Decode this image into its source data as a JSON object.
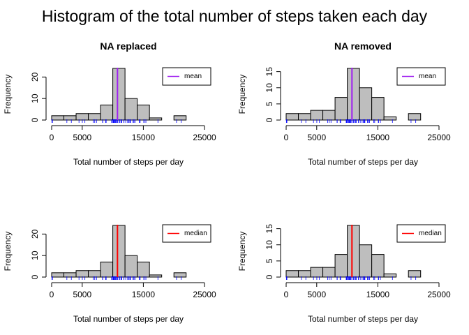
{
  "figure": {
    "title": "Histogram of the total number of steps taken each day"
  },
  "chart_data": [
    {
      "type": "bar",
      "title": "NA replaced",
      "xlabel": "Total number of steps per day",
      "ylabel": "Frequency",
      "bin_edges": [
        0,
        2000,
        4000,
        6000,
        8000,
        10000,
        12000,
        14000,
        16000,
        18000,
        20000,
        22000
      ],
      "values": [
        2,
        2,
        3,
        3,
        7,
        24,
        10,
        7,
        1,
        0,
        2
      ],
      "xlim": [
        0,
        25000
      ],
      "x_ticks": [
        0,
        5000,
        15000,
        25000
      ],
      "x_tick_labels": [
        "0",
        "5000",
        "15000",
        "25000"
      ],
      "ylim": [
        0,
        24
      ],
      "y_ticks": [
        0,
        10,
        20
      ],
      "y_tick_labels": [
        "0",
        "10",
        "20"
      ],
      "reference_line": {
        "label": "mean",
        "value": 10766,
        "color": "#a020f0"
      },
      "legend": {
        "position": "top-right",
        "label": "mean"
      },
      "bar_color": "#bebebe",
      "rug_color": "#0000ff",
      "rug": [
        41,
        126,
        2492,
        3219,
        4472,
        5018,
        5441,
        6778,
        7047,
        7336,
        8334,
        8355,
        8821,
        8918,
        9819,
        9900,
        10056,
        10139,
        10183,
        10304,
        10395,
        10439,
        10571,
        10600,
        10765,
        10766,
        11015,
        11162,
        11352,
        11458,
        11829,
        11834,
        12116,
        12426,
        12608,
        12787,
        12811,
        12883,
        13294,
        13452,
        13460,
        13646,
        14339,
        14478,
        15084,
        15098,
        15110,
        15414,
        17382,
        20427,
        21194
      ]
    },
    {
      "type": "bar",
      "title": "NA removed",
      "xlabel": "Total number of steps per day",
      "ylabel": "Frequency",
      "bin_edges": [
        0,
        2000,
        4000,
        6000,
        8000,
        10000,
        12000,
        14000,
        16000,
        18000,
        20000,
        22000
      ],
      "values": [
        2,
        2,
        3,
        3,
        7,
        16,
        10,
        7,
        1,
        0,
        2
      ],
      "xlim": [
        0,
        25000
      ],
      "x_ticks": [
        0,
        5000,
        15000,
        25000
      ],
      "x_tick_labels": [
        "0",
        "5000",
        "15000",
        "25000"
      ],
      "ylim": [
        0,
        16
      ],
      "y_ticks": [
        0,
        5,
        10,
        15
      ],
      "y_tick_labels": [
        "0",
        "5",
        "10",
        "15"
      ],
      "reference_line": {
        "label": "mean",
        "value": 10766,
        "color": "#a020f0"
      },
      "legend": {
        "position": "top-right",
        "label": "mean"
      },
      "bar_color": "#bebebe",
      "rug_color": "#0000ff",
      "rug": [
        41,
        126,
        2492,
        3219,
        4472,
        5018,
        5441,
        6778,
        7047,
        7336,
        8334,
        8355,
        8821,
        8918,
        9819,
        9900,
        10056,
        10139,
        10183,
        10304,
        10395,
        10439,
        10571,
        10600,
        10765,
        10766,
        11015,
        11162,
        11352,
        11458,
        11829,
        11834,
        12116,
        12426,
        12608,
        12787,
        12811,
        12883,
        13294,
        13452,
        13460,
        13646,
        14339,
        14478,
        15084,
        15098,
        15110,
        15414,
        17382,
        20427,
        21194
      ]
    },
    {
      "type": "bar",
      "title": "",
      "xlabel": "Total number of steps per day",
      "ylabel": "Frequency",
      "bin_edges": [
        0,
        2000,
        4000,
        6000,
        8000,
        10000,
        12000,
        14000,
        16000,
        18000,
        20000,
        22000
      ],
      "values": [
        2,
        2,
        3,
        3,
        7,
        24,
        10,
        7,
        1,
        0,
        2
      ],
      "xlim": [
        0,
        25000
      ],
      "x_ticks": [
        0,
        5000,
        15000,
        25000
      ],
      "x_tick_labels": [
        "0",
        "5000",
        "15000",
        "25000"
      ],
      "ylim": [
        0,
        24
      ],
      "y_ticks": [
        0,
        10,
        20
      ],
      "y_tick_labels": [
        "0",
        "10",
        "20"
      ],
      "reference_line": {
        "label": "median",
        "value": 10766,
        "color": "#ff0000"
      },
      "legend": {
        "position": "top-right",
        "label": "median"
      },
      "bar_color": "#bebebe",
      "rug_color": "#0000ff",
      "rug": [
        41,
        126,
        2492,
        3219,
        4472,
        5018,
        5441,
        6778,
        7047,
        7336,
        8334,
        8355,
        8821,
        8918,
        9819,
        9900,
        10056,
        10139,
        10183,
        10304,
        10395,
        10439,
        10571,
        10600,
        10765,
        10766,
        11015,
        11162,
        11352,
        11458,
        11829,
        11834,
        12116,
        12426,
        12608,
        12787,
        12811,
        12883,
        13294,
        13452,
        13460,
        13646,
        14339,
        14478,
        15084,
        15098,
        15110,
        15414,
        17382,
        20427,
        21194
      ]
    },
    {
      "type": "bar",
      "title": "",
      "xlabel": "Total number of steps per day",
      "ylabel": "Frequency",
      "bin_edges": [
        0,
        2000,
        4000,
        6000,
        8000,
        10000,
        12000,
        14000,
        16000,
        18000,
        20000,
        22000
      ],
      "values": [
        2,
        2,
        3,
        3,
        7,
        16,
        10,
        7,
        1,
        0,
        2
      ],
      "xlim": [
        0,
        25000
      ],
      "x_ticks": [
        0,
        5000,
        15000,
        25000
      ],
      "x_tick_labels": [
        "0",
        "5000",
        "15000",
        "25000"
      ],
      "ylim": [
        0,
        16
      ],
      "y_ticks": [
        0,
        5,
        10,
        15
      ],
      "y_tick_labels": [
        "0",
        "5",
        "10",
        "15"
      ],
      "reference_line": {
        "label": "median",
        "value": 10765,
        "color": "#ff0000"
      },
      "legend": {
        "position": "top-right",
        "label": "median"
      },
      "bar_color": "#bebebe",
      "rug_color": "#0000ff",
      "rug": [
        41,
        126,
        2492,
        3219,
        4472,
        5018,
        5441,
        6778,
        7047,
        7336,
        8334,
        8355,
        8821,
        8918,
        9819,
        9900,
        10056,
        10139,
        10183,
        10304,
        10395,
        10439,
        10571,
        10600,
        10765,
        11015,
        11162,
        11352,
        11458,
        11829,
        11834,
        12116,
        12426,
        12608,
        12787,
        12811,
        12883,
        13294,
        13452,
        13460,
        13646,
        14339,
        14478,
        15084,
        15098,
        15110,
        15414,
        17382,
        20427,
        21194
      ]
    }
  ]
}
